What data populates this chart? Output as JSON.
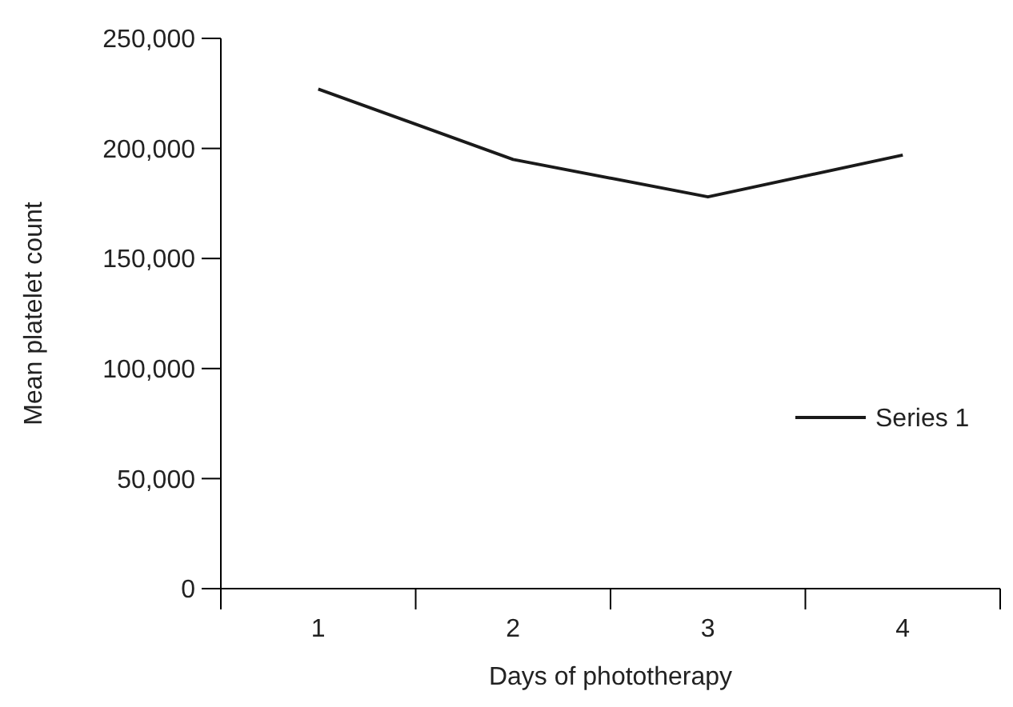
{
  "chart_data": {
    "type": "line",
    "xlabel": "Days of phototherapy",
    "ylabel": "Mean platelet count",
    "categories": [
      "1",
      "2",
      "3",
      "4"
    ],
    "series": [
      {
        "name": "Series 1",
        "color": "#1a1a1a",
        "values": [
          227000,
          195000,
          178000,
          197000
        ]
      }
    ],
    "ylim": [
      0,
      250000
    ],
    "yticks": [
      {
        "value": 0,
        "label": "0"
      },
      {
        "value": 50000,
        "label": "50,000"
      },
      {
        "value": 100000,
        "label": "100,000"
      },
      {
        "value": 150000,
        "label": "150,000"
      },
      {
        "value": 200000,
        "label": "200,000"
      },
      {
        "value": 250000,
        "label": "250,000"
      }
    ],
    "grid": false,
    "legend": "right",
    "marker": "none",
    "line_style": "solid"
  }
}
